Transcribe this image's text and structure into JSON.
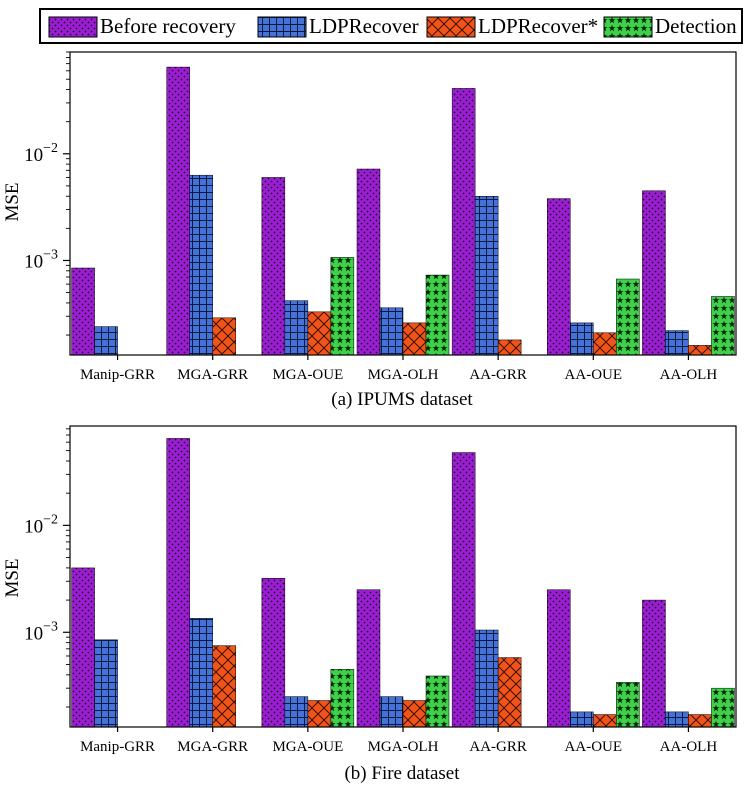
{
  "legend": {
    "entries": [
      {
        "label": "Before recovery",
        "color": "#9c1ed2",
        "pattern": "dots"
      },
      {
        "label": "LDPRecover",
        "color": "#4472d6",
        "pattern": "grid"
      },
      {
        "label": "LDPRecover*",
        "color": "#f0541a",
        "pattern": "cross"
      },
      {
        "label": "Detection",
        "color": "#3fd14a",
        "pattern": "stars"
      }
    ]
  },
  "chart_data": [
    {
      "type": "bar",
      "title": "(a) IPUMS dataset",
      "ylabel": "MSE",
      "yscale": "log",
      "ylim": [
        0.00013,
        0.09
      ],
      "yticks": [
        {
          "value": 0.01,
          "base": "10",
          "exp": "−2"
        },
        {
          "value": 0.001,
          "base": "10",
          "exp": "−3"
        }
      ],
      "categories": [
        "Manip-GRR",
        "MGA-GRR",
        "MGA-OUE",
        "MGA-OLH",
        "AA-GRR",
        "AA-OUE",
        "AA-OLH"
      ],
      "series": [
        {
          "name": "Before recovery",
          "values": [
            0.00085,
            0.065,
            0.006,
            0.0072,
            0.041,
            0.0038,
            0.0045
          ]
        },
        {
          "name": "LDPRecover",
          "values": [
            0.00024,
            0.0063,
            0.00042,
            0.00036,
            0.004,
            0.00026,
            0.00022
          ]
        },
        {
          "name": "LDPRecover*",
          "values": [
            null,
            0.00029,
            0.00033,
            0.00026,
            0.00018,
            0.00021,
            0.00016
          ]
        },
        {
          "name": "Detection",
          "values": [
            null,
            null,
            0.00107,
            0.00073,
            null,
            0.00067,
            0.00046
          ]
        }
      ]
    },
    {
      "type": "bar",
      "title": "(b) Fire dataset",
      "ylabel": "MSE",
      "yscale": "log",
      "ylim": [
        0.00013,
        0.085
      ],
      "yticks": [
        {
          "value": 0.01,
          "base": "10",
          "exp": "−2"
        },
        {
          "value": 0.001,
          "base": "10",
          "exp": "−3"
        }
      ],
      "categories": [
        "Manip-GRR",
        "MGA-GRR",
        "MGA-OUE",
        "MGA-OLH",
        "AA-GRR",
        "AA-OUE",
        "AA-OLH"
      ],
      "series": [
        {
          "name": "Before recovery",
          "values": [
            0.004,
            0.065,
            0.0032,
            0.0025,
            0.048,
            0.0025,
            0.002
          ]
        },
        {
          "name": "LDPRecover",
          "values": [
            0.00085,
            0.00135,
            0.00025,
            0.00025,
            0.00105,
            0.00018,
            0.00018
          ]
        },
        {
          "name": "LDPRecover*",
          "values": [
            null,
            0.00075,
            0.00023,
            0.00023,
            0.00058,
            0.00017,
            0.00017
          ]
        },
        {
          "name": "Detection",
          "values": [
            null,
            null,
            0.00045,
            0.00039,
            null,
            0.00034,
            0.0003
          ]
        }
      ]
    }
  ]
}
